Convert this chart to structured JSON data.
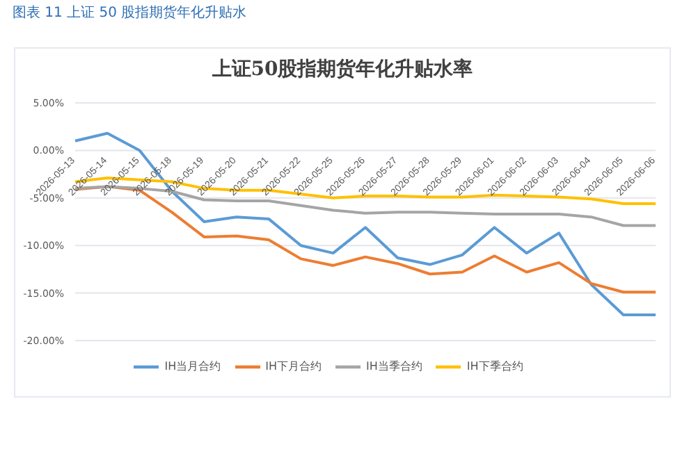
{
  "chart_data": {
    "type": "line",
    "title": "图表 11  上证 50 股指期货年化升贴水",
    "subtitle": "上证50股指期货年化升贴水率",
    "categories": [
      "2026-05-13",
      "2026-05-14",
      "2026-05-15",
      "2026-05-18",
      "2026-05-19",
      "2026-05-20",
      "2026-05-21",
      "2026-05-22",
      "2026-05-25",
      "2026-05-26",
      "2026-05-27",
      "2026-05-28",
      "2026-05-29",
      "2026-06-01",
      "2026-06-02",
      "2026-06-03",
      "2026-06-04",
      "2026-06-05",
      "2026-06-06"
    ],
    "series": [
      {
        "name": "IH当月合约",
        "color": "#5b9bd5",
        "values": [
          1.0,
          1.8,
          0.0,
          -4.3,
          -7.5,
          -7.0,
          -7.2,
          -10.0,
          -10.8,
          -8.1,
          -11.3,
          -12.0,
          -11.0,
          -8.1,
          -10.8,
          -8.7,
          -14.1,
          -17.3,
          -17.3
        ]
      },
      {
        "name": "IH下月合约",
        "color": "#ed7d31",
        "values": [
          -4.1,
          -3.8,
          -4.2,
          -6.5,
          -9.1,
          -9.0,
          -9.4,
          -11.4,
          -12.1,
          -11.2,
          -11.9,
          -13.0,
          -12.8,
          -11.1,
          -12.8,
          -11.8,
          -14.0,
          -14.9,
          -14.9
        ]
      },
      {
        "name": "IH当季合约",
        "color": "#a5a5a5",
        "values": [
          -4.0,
          -3.8,
          -4.0,
          -4.3,
          -5.2,
          -5.3,
          -5.3,
          -5.8,
          -6.3,
          -6.6,
          -6.5,
          -6.5,
          -6.6,
          -6.7,
          -6.7,
          -6.7,
          -7.0,
          -7.9,
          -7.9
        ]
      },
      {
        "name": "IH下季合约",
        "color": "#ffc000",
        "values": [
          -3.3,
          -2.9,
          -3.1,
          -3.3,
          -4.0,
          -4.2,
          -4.2,
          -4.6,
          -5.0,
          -4.8,
          -4.8,
          -4.9,
          -4.9,
          -4.7,
          -4.8,
          -4.9,
          -5.1,
          -5.6,
          -5.6
        ]
      }
    ],
    "ylim": [
      -20,
      5
    ],
    "yticks": [
      {
        "value": 5,
        "label": "5.00%"
      },
      {
        "value": 0,
        "label": "0.00%"
      },
      {
        "value": -5,
        "label": "-5.00%"
      },
      {
        "value": -10,
        "label": "-10.00%"
      },
      {
        "value": -15,
        "label": "-15.00%"
      },
      {
        "value": -20,
        "label": "-20.00%"
      }
    ],
    "grid": "y",
    "legend": "bottom",
    "marker": "none",
    "line_style": "solid"
  }
}
